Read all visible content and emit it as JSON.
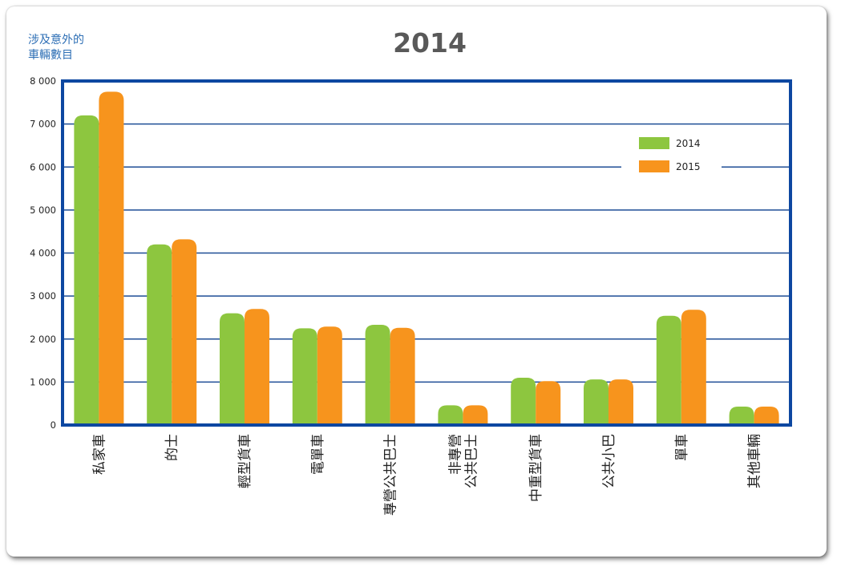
{
  "chart_data": {
    "type": "bar",
    "title": "2014",
    "ylabel_lines": [
      "涉及意外的",
      "車輛數目"
    ],
    "xlabel": "",
    "ylim": [
      0,
      8000
    ],
    "y_ticks": [
      0,
      1000,
      2000,
      3000,
      4000,
      5000,
      6000,
      7000,
      8000
    ],
    "y_tick_labels": [
      "0",
      "1 000",
      "2 000",
      "3 000",
      "4 000",
      "5 000",
      "6 000",
      "7 000",
      "8 000"
    ],
    "grid": true,
    "legend_position": "top-right",
    "categories": [
      [
        "私家車"
      ],
      [
        "的士"
      ],
      [
        "輕型貨車"
      ],
      [
        "電單車"
      ],
      [
        "專營公共巴士"
      ],
      [
        "非專營",
        "公共巴士"
      ],
      [
        "中重型貨車"
      ],
      [
        "公共小巴"
      ],
      [
        "單車"
      ],
      [
        "其他車輛"
      ]
    ],
    "series": [
      {
        "name": "2014",
        "color": "#8dc63f",
        "values": [
          7200,
          4200,
          2600,
          2250,
          2330,
          460,
          1100,
          1060,
          2540,
          430
        ]
      },
      {
        "name": "2015",
        "color": "#f7941d",
        "values": [
          7750,
          4320,
          2700,
          2290,
          2260,
          460,
          1020,
          1060,
          2680,
          430
        ]
      }
    ],
    "colors": {
      "frame": "#0d47a1",
      "grid": "#1f4e96",
      "title": "#595959",
      "ylabel": "#2e6fb5"
    }
  }
}
